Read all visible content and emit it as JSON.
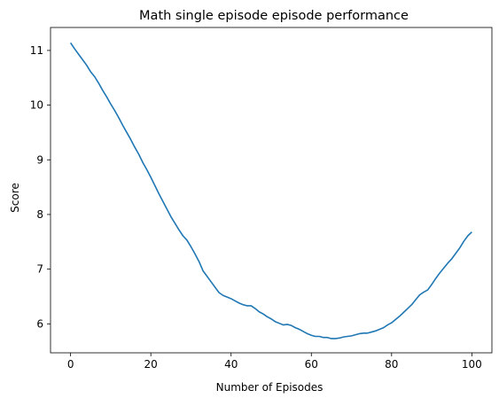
{
  "chart_data": {
    "type": "line",
    "title": "Math single episode episode performance",
    "xlabel": "Number of Episodes",
    "ylabel": "Score",
    "xlim": [
      -5,
      105
    ],
    "ylim": [
      5.47,
      11.42
    ],
    "xticks": [
      0,
      20,
      40,
      60,
      80,
      100
    ],
    "yticks": [
      6,
      7,
      8,
      9,
      10,
      11
    ],
    "grid": false,
    "legend": "none",
    "series": [
      {
        "color": "#1f77b4",
        "x": [
          0,
          1,
          2,
          3,
          4,
          5,
          6,
          7,
          8,
          9,
          10,
          11,
          12,
          13,
          14,
          15,
          16,
          17,
          18,
          19,
          20,
          21,
          22,
          23,
          24,
          25,
          26,
          27,
          28,
          29,
          30,
          31,
          32,
          33,
          34,
          35,
          36,
          37,
          38,
          39,
          40,
          41,
          42,
          43,
          44,
          45,
          46,
          47,
          48,
          49,
          50,
          51,
          52,
          53,
          54,
          55,
          56,
          57,
          58,
          59,
          60,
          61,
          62,
          63,
          64,
          65,
          66,
          67,
          68,
          69,
          70,
          71,
          72,
          73,
          74,
          75,
          76,
          77,
          78,
          79,
          80,
          81,
          82,
          83,
          84,
          85,
          86,
          87,
          88,
          89,
          90,
          91,
          92,
          93,
          94,
          95,
          96,
          97,
          98,
          99,
          100
        ],
        "values": [
          11.14,
          11.03,
          10.93,
          10.83,
          10.73,
          10.61,
          10.52,
          10.4,
          10.27,
          10.15,
          10.02,
          9.9,
          9.77,
          9.63,
          9.5,
          9.37,
          9.23,
          9.1,
          8.95,
          8.82,
          8.68,
          8.53,
          8.38,
          8.24,
          8.1,
          7.96,
          7.84,
          7.72,
          7.61,
          7.53,
          7.41,
          7.28,
          7.14,
          6.97,
          6.87,
          6.77,
          6.67,
          6.57,
          6.52,
          6.49,
          6.46,
          6.42,
          6.38,
          6.35,
          6.33,
          6.33,
          6.28,
          6.22,
          6.18,
          6.13,
          6.09,
          6.04,
          6.01,
          5.98,
          5.99,
          5.97,
          5.93,
          5.9,
          5.86,
          5.82,
          5.79,
          5.77,
          5.77,
          5.75,
          5.75,
          5.73,
          5.73,
          5.74,
          5.76,
          5.77,
          5.78,
          5.8,
          5.82,
          5.83,
          5.83,
          5.85,
          5.87,
          5.9,
          5.93,
          5.98,
          6.02,
          6.08,
          6.14,
          6.21,
          6.28,
          6.35,
          6.44,
          6.53,
          6.58,
          6.62,
          6.72,
          6.83,
          6.93,
          7.02,
          7.11,
          7.19,
          7.29,
          7.39,
          7.51,
          7.61,
          7.68
        ]
      }
    ]
  }
}
